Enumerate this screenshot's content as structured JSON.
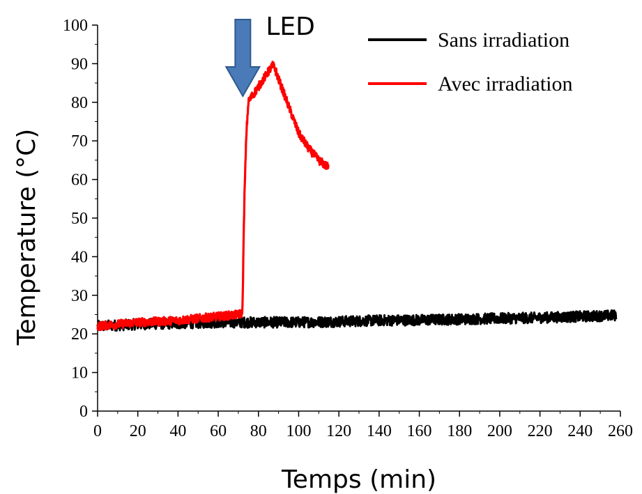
{
  "chart_data": {
    "type": "line",
    "title": "",
    "xlabel": "Temps (min)",
    "ylabel": "Temperature (°C)",
    "xlim": [
      0,
      260
    ],
    "ylim": [
      0,
      100
    ],
    "xticks": [
      0,
      20,
      40,
      60,
      80,
      100,
      120,
      140,
      160,
      180,
      200,
      220,
      240,
      260
    ],
    "yticks": [
      0,
      10,
      20,
      30,
      40,
      50,
      60,
      70,
      80,
      90,
      100
    ],
    "grid": false,
    "legend_position": "top-right",
    "series": [
      {
        "name": "Sans irradiation",
        "color": "#000000",
        "x": [
          0,
          20,
          40,
          60,
          70,
          80,
          100,
          120,
          140,
          160,
          180,
          200,
          220,
          240,
          258
        ],
        "y": [
          22,
          22.5,
          22.7,
          23,
          23,
          23,
          23,
          23.2,
          23.5,
          23.6,
          23.8,
          24,
          24.2,
          24.5,
          24.8
        ]
      },
      {
        "name": "Avec irradiation",
        "color": "#ff0000",
        "x": [
          0,
          10,
          20,
          30,
          40,
          50,
          60,
          70,
          72,
          73,
          74,
          75,
          76,
          80,
          85,
          87,
          88,
          90,
          95,
          100,
          105,
          110,
          115
        ],
        "y": [
          22,
          22.5,
          23,
          23.2,
          23.5,
          24,
          24.5,
          25,
          25.5,
          55,
          72,
          80,
          81,
          84,
          88,
          89.5,
          89,
          86,
          79,
          72,
          68,
          65,
          63
        ]
      }
    ],
    "annotations": [
      {
        "text": "LED",
        "x": 75,
        "y": 100,
        "shape": "down-arrow",
        "color": "#4a7ab8"
      }
    ]
  }
}
